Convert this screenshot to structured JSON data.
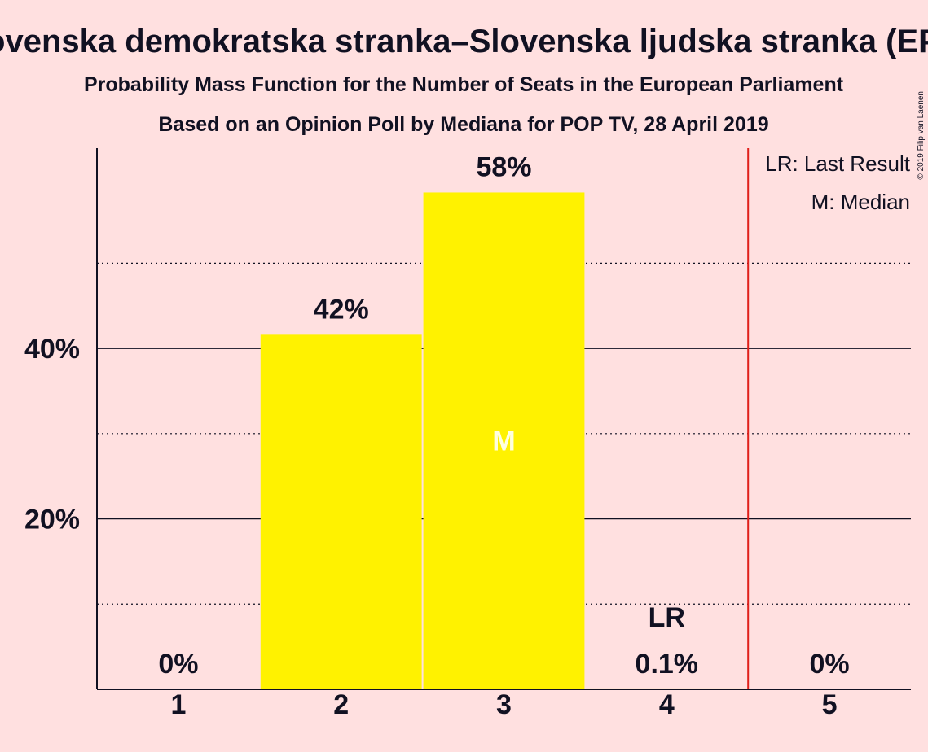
{
  "colors": {
    "background": "#FFE0E0",
    "bar": "#FFF200",
    "text": "#111122",
    "last_result_line": "#E0201A",
    "median_marker": "#FFFFE0"
  },
  "copyright": "© 2019 Filip van Laenen",
  "chart_data": {
    "type": "bar",
    "title": "Slovenska demokratska stranka–Slovenska ljudska stranka (EPP)",
    "subtitle": "Probability Mass Function for the Number of Seats in the European Parliament",
    "subtitle2": "Based on an Opinion Poll by Mediana for POP TV, 28 April 2019",
    "categories": [
      "1",
      "2",
      "3",
      "4",
      "5"
    ],
    "values": [
      0,
      41.6,
      58.3,
      0.1,
      0
    ],
    "value_labels": [
      "0%",
      "42%",
      "58%",
      "0.1%",
      "0%"
    ],
    "xlabel": "",
    "ylabel": "",
    "ylim": [
      0,
      63.5
    ],
    "y_ticks": [
      {
        "value": 20,
        "label": "20%"
      },
      {
        "value": 40,
        "label": "40%"
      }
    ],
    "y_minor_gridlines": [
      10,
      30,
      50
    ],
    "grid": true,
    "last_result": {
      "category": "4",
      "label": "LR"
    },
    "median": {
      "category": "3",
      "label": "M"
    },
    "threshold_line_after_category": "4",
    "legend": {
      "placement": "top-right",
      "entries": [
        "LR: Last Result",
        "M: Median"
      ]
    }
  }
}
